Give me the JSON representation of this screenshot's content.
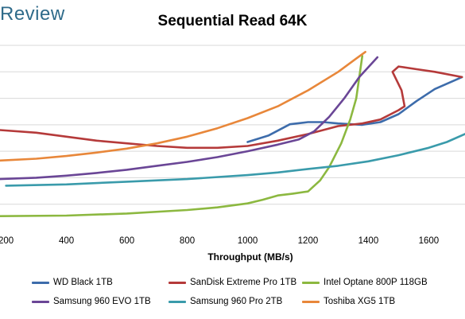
{
  "header": {
    "brand": "Review"
  },
  "chart_data": {
    "type": "line",
    "title": "Sequential Read 64K",
    "xlabel": "Throughput (MB/s)",
    "ylabel": "",
    "xlim": [
      180,
      1720
    ],
    "ylim": [
      0,
      7
    ],
    "x_ticks": [
      200,
      400,
      600,
      800,
      1000,
      1200,
      1400,
      1600
    ],
    "grid": "horizontal",
    "legend": "bottom",
    "series": [
      {
        "name": "WD Black 1TB",
        "color": "#3d6cab",
        "points": [
          [
            1000,
            3.35
          ],
          [
            1070,
            3.6
          ],
          [
            1140,
            4.02
          ],
          [
            1200,
            4.1
          ],
          [
            1250,
            4.1
          ],
          [
            1300,
            4.05
          ],
          [
            1380,
            4.0
          ],
          [
            1440,
            4.1
          ],
          [
            1500,
            4.4
          ],
          [
            1560,
            4.9
          ],
          [
            1620,
            5.35
          ],
          [
            1710,
            5.8
          ]
        ]
      },
      {
        "name": "SanDisk Extreme Pro 1TB",
        "color": "#b53a3a",
        "points": [
          [
            180,
            3.8
          ],
          [
            300,
            3.7
          ],
          [
            400,
            3.55
          ],
          [
            500,
            3.4
          ],
          [
            600,
            3.3
          ],
          [
            700,
            3.2
          ],
          [
            800,
            3.13
          ],
          [
            900,
            3.13
          ],
          [
            1000,
            3.2
          ],
          [
            1100,
            3.4
          ],
          [
            1200,
            3.65
          ],
          [
            1300,
            3.95
          ],
          [
            1380,
            4.05
          ],
          [
            1440,
            4.2
          ],
          [
            1500,
            4.55
          ],
          [
            1520,
            4.7
          ],
          [
            1510,
            5.3
          ],
          [
            1480,
            6.0
          ],
          [
            1500,
            6.2
          ],
          [
            1560,
            6.1
          ],
          [
            1620,
            6.0
          ],
          [
            1710,
            5.8
          ]
        ]
      },
      {
        "name": "Intel Optane 800P 118GB",
        "color": "#8cb840",
        "points": [
          [
            180,
            0.55
          ],
          [
            400,
            0.57
          ],
          [
            600,
            0.65
          ],
          [
            800,
            0.78
          ],
          [
            900,
            0.88
          ],
          [
            1000,
            1.03
          ],
          [
            1050,
            1.17
          ],
          [
            1100,
            1.33
          ],
          [
            1150,
            1.4
          ],
          [
            1200,
            1.48
          ],
          [
            1240,
            1.9
          ],
          [
            1270,
            2.4
          ],
          [
            1310,
            3.3
          ],
          [
            1340,
            4.2
          ],
          [
            1360,
            5.0
          ],
          [
            1370,
            5.8
          ],
          [
            1375,
            6.2
          ],
          [
            1380,
            6.6
          ]
        ]
      },
      {
        "name": "Samsung 960 EVO 1TB",
        "color": "#6a4696",
        "points": [
          [
            180,
            1.95
          ],
          [
            300,
            2.0
          ],
          [
            400,
            2.08
          ],
          [
            500,
            2.18
          ],
          [
            600,
            2.3
          ],
          [
            700,
            2.45
          ],
          [
            800,
            2.6
          ],
          [
            900,
            2.78
          ],
          [
            1000,
            3.0
          ],
          [
            1100,
            3.25
          ],
          [
            1170,
            3.45
          ],
          [
            1220,
            3.75
          ],
          [
            1270,
            4.3
          ],
          [
            1320,
            5.0
          ],
          [
            1370,
            5.8
          ],
          [
            1430,
            6.55
          ]
        ]
      },
      {
        "name": "Samsung 960 Pro 2TB",
        "color": "#3a9bab",
        "points": [
          [
            200,
            1.7
          ],
          [
            400,
            1.75
          ],
          [
            600,
            1.85
          ],
          [
            800,
            1.95
          ],
          [
            1000,
            2.1
          ],
          [
            1100,
            2.2
          ],
          [
            1200,
            2.33
          ],
          [
            1300,
            2.45
          ],
          [
            1400,
            2.62
          ],
          [
            1500,
            2.85
          ],
          [
            1600,
            3.13
          ],
          [
            1660,
            3.35
          ],
          [
            1720,
            3.65
          ]
        ]
      },
      {
        "name": "Toshiba XG5 1TB",
        "color": "#e8873a",
        "points": [
          [
            180,
            2.65
          ],
          [
            300,
            2.72
          ],
          [
            400,
            2.82
          ],
          [
            500,
            2.95
          ],
          [
            600,
            3.1
          ],
          [
            700,
            3.3
          ],
          [
            800,
            3.55
          ],
          [
            900,
            3.87
          ],
          [
            1000,
            4.25
          ],
          [
            1100,
            4.7
          ],
          [
            1200,
            5.3
          ],
          [
            1300,
            6.0
          ],
          [
            1360,
            6.5
          ],
          [
            1390,
            6.75
          ]
        ]
      }
    ]
  }
}
